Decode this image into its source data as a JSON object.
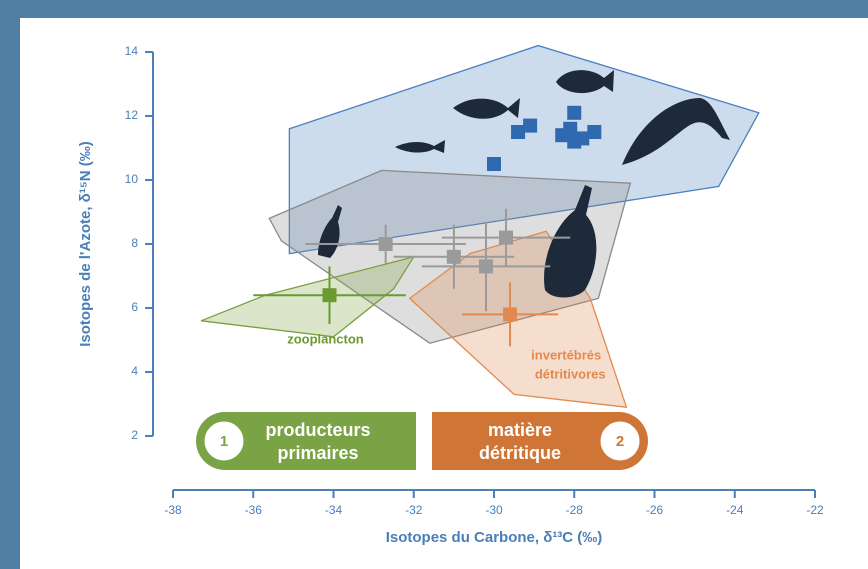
{
  "chart_data": {
    "type": "scatter",
    "xlabel": "Isotopes du Carbone, δ¹³C (‰)",
    "ylabel": "Isotopes de l'Azote, δ¹⁵N (‰)",
    "xlim": [
      -38,
      -22
    ],
    "ylim": [
      2,
      14
    ],
    "xticks": [
      -38,
      -36,
      -34,
      -32,
      -30,
      -28,
      -26,
      -24,
      -22
    ],
    "yticks": [
      2,
      4,
      6,
      8,
      10,
      12,
      14
    ],
    "axis_color": "#4a7fb8",
    "hulls": [
      {
        "color": "#4a80c0",
        "x": [
          -35.1,
          -28.9,
          -23.4,
          -24.4,
          -35.1
        ],
        "y": [
          11.6,
          14.2,
          12.1,
          9.8,
          7.7
        ]
      },
      {
        "color": "#8a8a8a",
        "x": [
          -35.6,
          -32.8,
          -26.6,
          -27.4,
          -31.6,
          -35.3
        ],
        "y": [
          8.8,
          10.3,
          9.9,
          6.3,
          4.9,
          8.1
        ]
      },
      {
        "color": "#7aa040",
        "x": [
          -37.3,
          -35.7,
          -32.0,
          -32.5,
          -34.0
        ],
        "y": [
          5.6,
          6.4,
          7.6,
          6.6,
          5.1
        ]
      },
      {
        "color": "#e08a50",
        "x": [
          -32.1,
          -30.6,
          -28.7,
          -27.6,
          -26.7,
          -29.5
        ],
        "y": [
          6.3,
          7.7,
          8.4,
          6.3,
          2.9,
          3.3
        ]
      }
    ],
    "series": [
      {
        "color": "#2f69b0",
        "x": [
          -30.0,
          -29.4,
          -29.1,
          -28.1,
          -28.0,
          -28.3,
          -27.8,
          -27.5,
          -28.0
        ],
        "values": [
          10.5,
          11.5,
          11.7,
          11.6,
          12.1,
          11.4,
          11.3,
          11.5,
          11.2
        ]
      },
      {
        "color": "#9a9a9a",
        "x": [
          -32.7,
          -31.0,
          -30.2,
          -29.7
        ],
        "values": [
          8.0,
          7.6,
          7.3,
          8.2
        ],
        "xerr": [
          2.0,
          1.5,
          1.6,
          1.6
        ],
        "yerr": [
          0.6,
          1.0,
          1.4,
          0.9
        ]
      },
      {
        "color": "#6a9a30",
        "x": [
          -34.1
        ],
        "values": [
          6.4
        ],
        "xerr": [
          1.9
        ],
        "yerr": [
          0.9
        ]
      },
      {
        "color": "#e08a50",
        "x": [
          -29.6
        ],
        "values": [
          5.8
        ],
        "xerr": [
          1.2
        ],
        "yerr": [
          1.0
        ]
      }
    ],
    "annotations": [
      {
        "text": "zooplancton",
        "color": "#6a9a30",
        "x": -34.2,
        "y": 5.0
      },
      {
        "text": "invertébrés",
        "color": "#e08a50",
        "x": -28.2,
        "y": 4.5
      },
      {
        "text": "détritivores",
        "color": "#e08a50",
        "x": -28.1,
        "y": 3.9
      }
    ],
    "boxes": [
      {
        "number": "1",
        "lines": [
          "producteurs",
          "primaires"
        ],
        "color": "#79a345"
      },
      {
        "number": "2",
        "lines": [
          "matière",
          "détritique"
        ],
        "color": "#cf7636"
      }
    ]
  }
}
